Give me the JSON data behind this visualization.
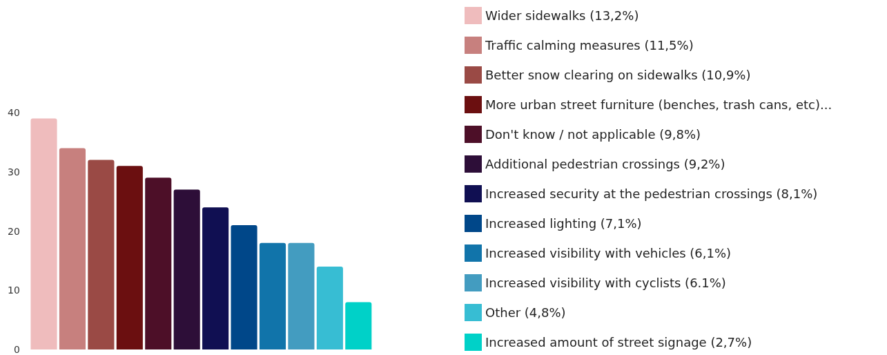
{
  "chart_data": {
    "type": "bar",
    "stacked": true,
    "categories": [
      null,
      null,
      null,
      null,
      null,
      null,
      null,
      null,
      null,
      null,
      null,
      null
    ],
    "series": [
      {
        "name": "Wider sidewalks (13,2%)",
        "color": "#efbcbd",
        "values": [
          39,
          null,
          null,
          null,
          null,
          null,
          null,
          null,
          null,
          null,
          null,
          null
        ]
      },
      {
        "name": "Traffic calming measures (11,5%)",
        "color": "#c7807e",
        "values": [
          null,
          34,
          null,
          null,
          null,
          null,
          null,
          null,
          null,
          null,
          null,
          null
        ]
      },
      {
        "name": "Better snow clearing on sidewalks (10,9%)",
        "color": "#9a4a45",
        "values": [
          null,
          null,
          32,
          null,
          null,
          null,
          null,
          null,
          null,
          null,
          null,
          null
        ]
      },
      {
        "name": "More urban street furniture (benches, trash cans, etc)...",
        "color": "#6b0f10",
        "values": [
          null,
          null,
          null,
          31,
          null,
          null,
          null,
          null,
          null,
          null,
          null,
          null
        ]
      },
      {
        "name": "Don't know / not applicable (9,8%)",
        "color": "#4d0f28",
        "values": [
          null,
          null,
          null,
          null,
          29,
          null,
          null,
          null,
          null,
          null,
          null,
          null
        ]
      },
      {
        "name": "Additional pedestrian crossings (9,2%)",
        "color": "#2d0e38",
        "values": [
          null,
          null,
          null,
          null,
          null,
          27,
          null,
          null,
          null,
          null,
          null,
          null
        ]
      },
      {
        "name": "Increased security at the pedestrian crossings (8,1%)",
        "color": "#100f52",
        "values": [
          null,
          null,
          null,
          null,
          null,
          null,
          24,
          null,
          null,
          null,
          null,
          null
        ]
      },
      {
        "name": "Increased lighting (7,1%)",
        "color": "#004789",
        "values": [
          null,
          null,
          null,
          null,
          null,
          null,
          null,
          21,
          null,
          null,
          null,
          null
        ]
      },
      {
        "name": "Increased visibility with vehicles (6,1%)",
        "color": "#1174aa",
        "values": [
          null,
          null,
          null,
          null,
          null,
          null,
          null,
          null,
          18,
          null,
          null,
          null
        ]
      },
      {
        "name": "Increased visibility with cyclists (6.1%)",
        "color": "#439cc0",
        "values": [
          null,
          null,
          null,
          null,
          null,
          null,
          null,
          null,
          null,
          18,
          null,
          null
        ]
      },
      {
        "name": "Other (4,8%)",
        "color": "#37bdd3",
        "values": [
          null,
          null,
          null,
          null,
          null,
          null,
          null,
          null,
          null,
          null,
          14,
          null
        ]
      },
      {
        "name": "Increased amount of street signage (2,7%)",
        "color": "#00d1c8",
        "values": [
          null,
          null,
          null,
          null,
          null,
          null,
          null,
          null,
          null,
          null,
          null,
          8
        ]
      }
    ],
    "ylim": [
      0,
      40
    ],
    "yticks": [
      0,
      10,
      20,
      30,
      40
    ],
    "grid": false,
    "legend": "right",
    "tick_labels": "y"
  }
}
